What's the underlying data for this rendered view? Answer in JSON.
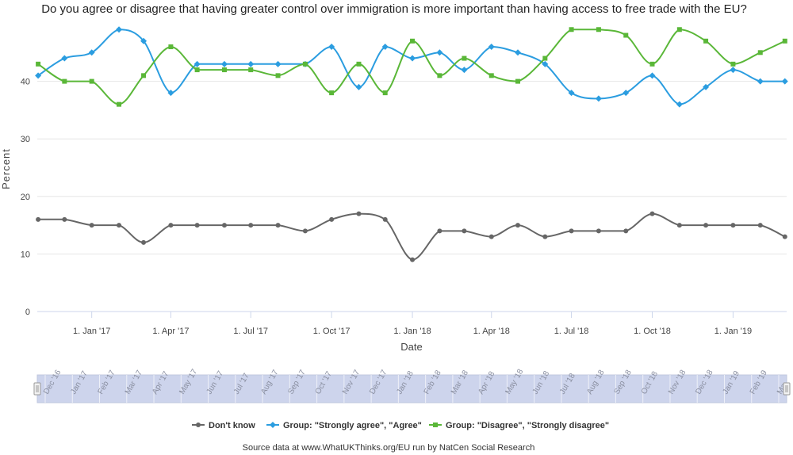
{
  "chart_data": {
    "type": "line",
    "title": "Do you agree or disagree that having greater control over immigration is more important than having access to free trade with the EU?",
    "xlabel": "Date",
    "ylabel": "Percent",
    "ylim": [
      0,
      50
    ],
    "yticks": [
      0,
      10,
      20,
      30,
      40
    ],
    "xlim": [
      "2016-10-31",
      "2019-03-03"
    ],
    "xticks": [
      {
        "date": "2017-01-01",
        "label": "1. Jan '17"
      },
      {
        "date": "2017-04-01",
        "label": "1. Apr '17"
      },
      {
        "date": "2017-07-01",
        "label": "1. Jul '17"
      },
      {
        "date": "2017-10-01",
        "label": "1. Oct '17"
      },
      {
        "date": "2018-01-01",
        "label": "1. Jan '18"
      },
      {
        "date": "2018-04-01",
        "label": "1. Apr '18"
      },
      {
        "date": "2018-07-01",
        "label": "1. Jul '18"
      },
      {
        "date": "2018-10-01",
        "label": "1. Oct '18"
      },
      {
        "date": "2019-01-01",
        "label": "1. Jan '19"
      }
    ],
    "x": [
      "2016-11-01",
      "2016-12-01",
      "2017-01-01",
      "2017-02-01",
      "2017-03-01",
      "2017-04-01",
      "2017-05-01",
      "2017-06-01",
      "2017-07-01",
      "2017-08-01",
      "2017-09-01",
      "2017-10-01",
      "2017-11-01",
      "2017-12-01",
      "2018-01-01",
      "2018-02-01",
      "2018-03-01",
      "2018-04-01",
      "2018-05-01",
      "2018-06-01",
      "2018-07-01",
      "2018-08-01",
      "2018-09-01",
      "2018-10-01",
      "2018-11-01",
      "2018-12-01",
      "2019-01-01",
      "2019-02-01",
      "2019-03-01"
    ],
    "series": [
      {
        "name": "Don't know",
        "color": "#666666",
        "marker": "circle",
        "values": [
          16,
          16,
          15,
          15,
          12,
          15,
          15,
          15,
          15,
          15,
          14,
          16,
          17,
          16,
          9,
          14,
          14,
          13,
          15,
          13,
          14,
          14,
          14,
          17,
          15,
          15,
          15,
          15,
          13
        ]
      },
      {
        "name": "Group: \"Strongly agree\", \"Agree\"",
        "color": "#2b9de0",
        "marker": "diamond",
        "values": [
          41,
          44,
          45,
          49,
          47,
          38,
          43,
          43,
          43,
          43,
          43,
          46,
          39,
          46,
          44,
          45,
          42,
          46,
          45,
          43,
          38,
          37,
          38,
          41,
          36,
          39,
          42,
          40,
          40
        ]
      },
      {
        "name": "Group: \"Disagree\", \"Strongly disagree\"",
        "color": "#5ab738",
        "marker": "square",
        "values": [
          43,
          40,
          40,
          36,
          41,
          46,
          42,
          42,
          42,
          41,
          43,
          38,
          43,
          38,
          47,
          41,
          44,
          41,
          40,
          44,
          49,
          49,
          48,
          43,
          49,
          47,
          43,
          45,
          47
        ]
      }
    ],
    "navigator_labels": [
      "Dec '16",
      "Jan '17",
      "Feb '17",
      "Mar '17",
      "Apr '17",
      "May '17",
      "Jun '17",
      "Jul '17",
      "Aug '17",
      "Sep '17",
      "Oct '17",
      "Nov '17",
      "Dec '17",
      "Jan '18",
      "Feb '18",
      "Mar '18",
      "Apr '18",
      "May '18",
      "Jun '18",
      "Jul '18",
      "Aug '18",
      "Sep '18",
      "Oct '18",
      "Nov '18",
      "Dec '18",
      "Jan '19",
      "Feb '19",
      "Ma"
    ],
    "grid": true,
    "legend": "bottom-center",
    "credit": "Source data at www.WhatUKThinks.org/EU run by NatCen Social Research"
  }
}
